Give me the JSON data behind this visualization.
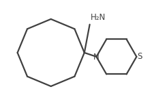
{
  "background_color": "#ffffff",
  "line_color": "#404040",
  "line_width": 1.6,
  "text_color": "#2a6496",
  "h2n_label": "H₂N",
  "n_label": "N",
  "s_label": "S",
  "fig_width": 2.23,
  "fig_height": 1.49,
  "dpi": 100
}
